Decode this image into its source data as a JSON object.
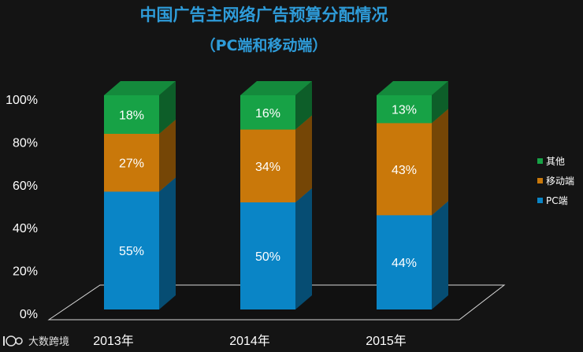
{
  "chart_data": {
    "type": "bar",
    "stacked": true,
    "title": "中国广告主网络广告预算分配情况",
    "subtitle": "（PC端和移动端）",
    "categories": [
      "2013年",
      "2014年",
      "2015年"
    ],
    "series": [
      {
        "name": "PC端",
        "values": [
          55,
          50,
          44
        ],
        "labels": [
          "55%",
          "50%",
          "44%"
        ]
      },
      {
        "name": "移动端",
        "values": [
          27,
          34,
          43
        ],
        "labels": [
          "27%",
          "34%",
          "43%"
        ]
      },
      {
        "name": "其他",
        "values": [
          18,
          16,
          13
        ],
        "labels": [
          "18%",
          "16%",
          "13%"
        ]
      }
    ],
    "yticks": [
      "0%",
      "20%",
      "40%",
      "60%",
      "80%",
      "100%"
    ],
    "ylim": [
      0,
      100
    ],
    "legend": [
      "其他",
      "移动端",
      "PC端"
    ],
    "legend_position": "right",
    "colors": {
      "PC端": "#0a85c6",
      "移动端": "#c9780a",
      "其他": "#17a246"
    }
  },
  "watermark": {
    "text": "大数跨境",
    "logo_text": "100"
  }
}
